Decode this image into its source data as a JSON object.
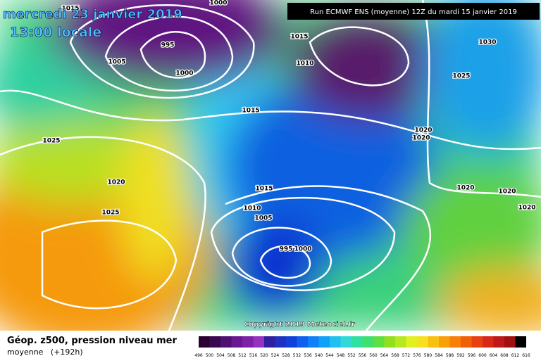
{
  "header": {
    "date": "mercredi 23 janvier 2019",
    "time": "13:00 locale",
    "run": "Run ECMWF ENS (moyenne) 12Z du mardi 15 janvier 2019"
  },
  "isobar_labels": [
    "1000",
    "1015",
    "995",
    "1005",
    "1000",
    "1015",
    "1010",
    "1030",
    "1025",
    "1015",
    "1020",
    "1020",
    "1025",
    "1020",
    "1025",
    "1015",
    "1010",
    "1005",
    "995",
    "1000",
    "1020",
    "1020",
    "1020"
  ],
  "copyright": "Copyright 2019 Meteociel.fr",
  "footer": {
    "title": "Géop. z500, pression niveau mer",
    "subtitle": "moyenne   (+192h)"
  },
  "scale": {
    "labels": [
      496,
      500,
      504,
      508,
      512,
      516,
      520,
      524,
      528,
      532,
      536,
      540,
      544,
      548,
      552,
      556,
      560,
      564,
      568,
      572,
      576,
      580,
      584,
      588,
      592,
      596,
      600,
      604,
      608,
      612,
      616
    ]
  }
}
